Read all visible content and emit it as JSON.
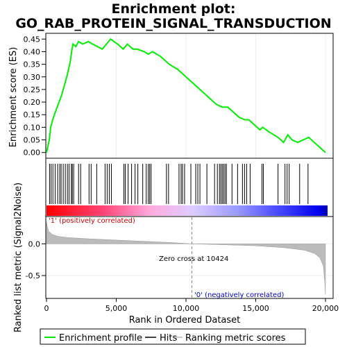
{
  "title_line1": "Enrichment plot:",
  "title_line2": "GO_RAB_PROTEIN_SIGNAL_TRANSDUCTION",
  "chart_data": {
    "type": "line",
    "es_panel": {
      "ylabel": "Enrichment score (ES)",
      "ylim": [
        -0.02,
        0.47
      ],
      "yticks": [
        "0.00",
        "0.05",
        "0.10",
        "0.15",
        "0.20",
        "0.25",
        "0.30",
        "0.35",
        "0.40",
        "0.45"
      ],
      "ytick_values": [
        0,
        0.05,
        0.1,
        0.15,
        0.2,
        0.25,
        0.3,
        0.35,
        0.4,
        0.45
      ],
      "line_color": "#00ee00",
      "x": [
        0,
        200,
        300,
        500,
        700,
        900,
        1100,
        1300,
        1500,
        1700,
        1800,
        1900,
        2100,
        2300,
        2600,
        3000,
        3300,
        4000,
        4300,
        4600,
        5100,
        5500,
        5800,
        6200,
        6500,
        7000,
        7300,
        7600,
        8200,
        8800,
        9400,
        10000,
        10600,
        11200,
        11800,
        12200,
        12600,
        13000,
        13400,
        13800,
        14200,
        14500,
        14900,
        15300,
        15500,
        16000,
        16600,
        17000,
        17300,
        17600,
        18000,
        18400,
        18800,
        19200,
        19600,
        20000
      ],
      "y": [
        0.0,
        0.05,
        0.1,
        0.14,
        0.17,
        0.2,
        0.23,
        0.27,
        0.31,
        0.36,
        0.4,
        0.43,
        0.42,
        0.44,
        0.43,
        0.44,
        0.43,
        0.41,
        0.43,
        0.45,
        0.43,
        0.41,
        0.43,
        0.41,
        0.41,
        0.4,
        0.39,
        0.4,
        0.38,
        0.35,
        0.33,
        0.3,
        0.27,
        0.24,
        0.21,
        0.19,
        0.18,
        0.18,
        0.16,
        0.14,
        0.13,
        0.13,
        0.11,
        0.09,
        0.1,
        0.08,
        0.06,
        0.04,
        0.07,
        0.05,
        0.04,
        0.05,
        0.06,
        0.04,
        0.02,
        0.0
      ]
    },
    "hits_x": [
      220,
      330,
      460,
      620,
      800,
      950,
      1050,
      1200,
      1350,
      1500,
      1620,
      1780,
      1850,
      1950,
      2300,
      2450,
      3050,
      3200,
      3600,
      4200,
      4350,
      4500,
      4650,
      5550,
      5650,
      5850,
      6100,
      6350,
      6550,
      6900,
      7150,
      7300,
      7400,
      7500,
      8600,
      8750,
      9500,
      9650,
      9750,
      9900,
      10350,
      10700,
      10850,
      11000,
      11500,
      12050,
      12250,
      12400,
      12500,
      12600,
      12700,
      12800,
      12900,
      13300,
      13700,
      14050,
      14200,
      14350,
      14600,
      15450,
      15550,
      16600,
      17100,
      17250,
      17400,
      18150,
      18750
    ],
    "bar_colors": {
      "positive": "#ff0000",
      "negative": "#0000ff",
      "gradient_stops": [
        "#ff0000",
        "#ff4477",
        "#ffaadd",
        "#ddccff",
        "#9999ff",
        "#5555ff",
        "#0000ee",
        "#0000aa"
      ]
    },
    "rank_panel": {
      "ylabel": "Ranked list metric (Signal2Noise)",
      "xlabel": "Rank in Ordered Dataset",
      "ylim": [
        -0.85,
        0.42
      ],
      "yticks": [
        "0.0",
        "-0.5"
      ],
      "ytick_values": [
        0,
        -0.5
      ],
      "x": [
        0,
        50,
        150,
        400,
        800,
        1500,
        3000,
        6000,
        9000,
        10424,
        12000,
        15000,
        17000,
        18500,
        19200,
        19600,
        19850,
        19950,
        20000
      ],
      "y": [
        0.35,
        0.28,
        0.2,
        0.15,
        0.12,
        0.1,
        0.08,
        0.05,
        0.02,
        0.0,
        -0.01,
        -0.03,
        -0.06,
        -0.1,
        -0.15,
        -0.22,
        -0.35,
        -0.6,
        -0.8
      ],
      "fill_color": "#bbbbbb",
      "zero_cross": 10424
    },
    "xlim": [
      0,
      20500
    ],
    "xticks": [
      "0",
      "5,000",
      "10,000",
      "15,000",
      "20,000"
    ],
    "xtick_values": [
      0,
      5000,
      10000,
      15000,
      20000
    ],
    "annotations": {
      "positive": "'1' (positively correlated)",
      "negative": "'0' (negatively correlated)",
      "zero_cross": "Zero cross at 10424"
    }
  },
  "legend": {
    "items": [
      {
        "label": "Enrichment profile",
        "color": "#00ee00"
      },
      {
        "label": "Hits",
        "color": "#000000"
      },
      {
        "label": "Ranking metric scores",
        "color": "#bbbbbb"
      }
    ]
  }
}
